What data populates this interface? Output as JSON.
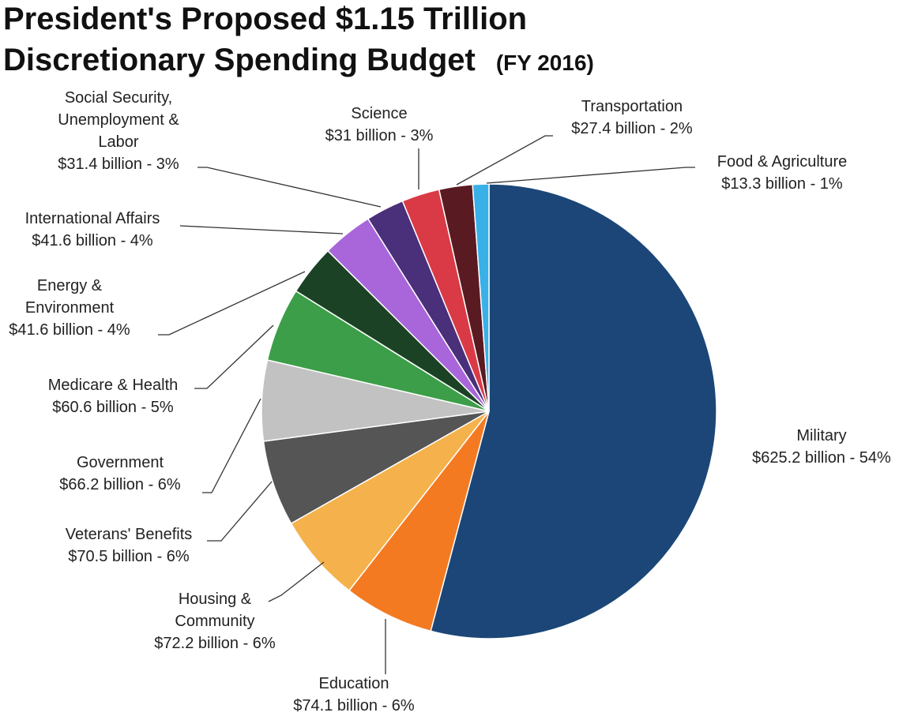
{
  "header": {
    "title_line1": "President's Proposed $1.15 Trillion",
    "title_line2": "Discretionary Spending Budget",
    "subtitle": "(FY 2016)"
  },
  "chart_data": {
    "type": "pie",
    "title": "President's Proposed $1.15 Trillion Discretionary Spending Budget (FY 2016)",
    "unit": "billion USD",
    "slices": [
      {
        "name": "Military",
        "label_lines": [
          "Military",
          "$625.2 billion - 54%"
        ],
        "value": 625.2,
        "percent": 54,
        "color": "#1b4677"
      },
      {
        "name": "Education",
        "label_lines": [
          "Education",
          "$74.1 billion - 6%"
        ],
        "value": 74.1,
        "percent": 6,
        "color": "#f47a22"
      },
      {
        "name": "Housing & Community",
        "label_lines": [
          "Housing &",
          "Community",
          "$72.2 billion - 6%"
        ],
        "value": 72.2,
        "percent": 6,
        "color": "#f5b14b"
      },
      {
        "name": "Veterans' Benefits",
        "label_lines": [
          "Veterans' Benefits",
          "$70.5 billion - 6%"
        ],
        "value": 70.5,
        "percent": 6,
        "color": "#555555"
      },
      {
        "name": "Government",
        "label_lines": [
          "Government",
          "$66.2 billion - 6%"
        ],
        "value": 66.2,
        "percent": 6,
        "color": "#c2c2c2"
      },
      {
        "name": "Medicare & Health",
        "label_lines": [
          "Medicare  & Health",
          "$60.6 billion - 5%"
        ],
        "value": 60.6,
        "percent": 5,
        "color": "#3c9e48"
      },
      {
        "name": "Energy & Environment",
        "label_lines": [
          "Energy &",
          "Environment",
          "$41.6 billion - 4%"
        ],
        "value": 41.6,
        "percent": 4,
        "color": "#1b4224"
      },
      {
        "name": "International Affairs",
        "label_lines": [
          "International  Affairs",
          "$41.6 billion - 4%"
        ],
        "value": 41.6,
        "percent": 4,
        "color": "#a866da"
      },
      {
        "name": "Social Security, Unemployment & Labor",
        "label_lines": [
          "Social Security,",
          "Unemployment &",
          "Labor",
          "$31.4 billion - 3%"
        ],
        "value": 31.4,
        "percent": 3,
        "color": "#4a2f7a"
      },
      {
        "name": "Science",
        "label_lines": [
          "Science",
          "$31 billion - 3%"
        ],
        "value": 31.0,
        "percent": 3,
        "color": "#d93a45"
      },
      {
        "name": "Transportation",
        "label_lines": [
          "Transportation",
          "$27.4 billion - 2%"
        ],
        "value": 27.4,
        "percent": 2,
        "color": "#5a1a22"
      },
      {
        "name": "Food & Agriculture",
        "label_lines": [
          "Food & Agriculture",
          "$13.3 billion - 1%"
        ],
        "value": 13.3,
        "percent": 1,
        "color": "#3ab0e8"
      }
    ]
  }
}
